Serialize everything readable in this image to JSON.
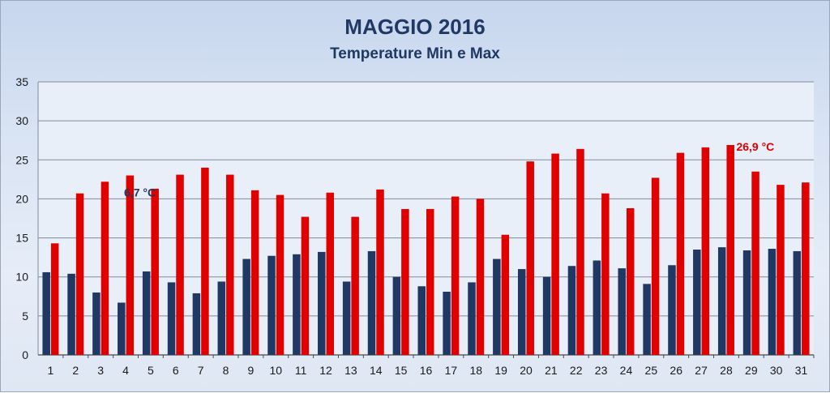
{
  "chart_data": {
    "type": "bar",
    "title": "MAGGIO 2016",
    "subtitle": "Temperature Min e Max",
    "xlabel": "",
    "ylabel": "",
    "ylim": [
      0,
      35
    ],
    "yticks": [
      0,
      5,
      10,
      15,
      20,
      25,
      30,
      35
    ],
    "grid": true,
    "legend": "none",
    "categories": [
      "1",
      "2",
      "3",
      "4",
      "5",
      "6",
      "7",
      "8",
      "9",
      "10",
      "11",
      "12",
      "13",
      "14",
      "15",
      "16",
      "17",
      "18",
      "19",
      "20",
      "21",
      "22",
      "23",
      "24",
      "25",
      "26",
      "27",
      "28",
      "29",
      "30",
      "31"
    ],
    "series": [
      {
        "color": "#1f3864",
        "values": [
          10.6,
          10.4,
          8.0,
          6.7,
          10.7,
          9.3,
          7.9,
          9.4,
          12.3,
          12.7,
          12.9,
          13.2,
          9.4,
          13.3,
          10.0,
          8.8,
          8.1,
          9.3,
          12.3,
          11.0,
          10.0,
          11.4,
          12.1,
          11.1,
          9.1,
          11.5,
          13.5,
          13.8,
          13.4,
          13.6,
          13.3
        ]
      },
      {
        "color": "#e00000",
        "values": [
          14.3,
          20.7,
          22.2,
          23.0,
          21.3,
          23.1,
          24.0,
          23.1,
          21.1,
          20.5,
          17.7,
          20.8,
          17.7,
          21.2,
          18.7,
          18.7,
          20.3,
          20.0,
          15.4,
          24.8,
          25.8,
          26.4,
          20.7,
          18.8,
          22.7,
          25.9,
          26.6,
          26.9,
          23.5,
          21.8,
          22.1
        ]
      }
    ],
    "annotations": [
      {
        "text": "6,7 °C",
        "category": "4",
        "series_index": 0,
        "value": 6.7,
        "color": "#1f3864"
      },
      {
        "text": "26,9 °C",
        "category": "28",
        "series_index": 1,
        "value": 26.9,
        "color": "#e00000"
      }
    ]
  }
}
